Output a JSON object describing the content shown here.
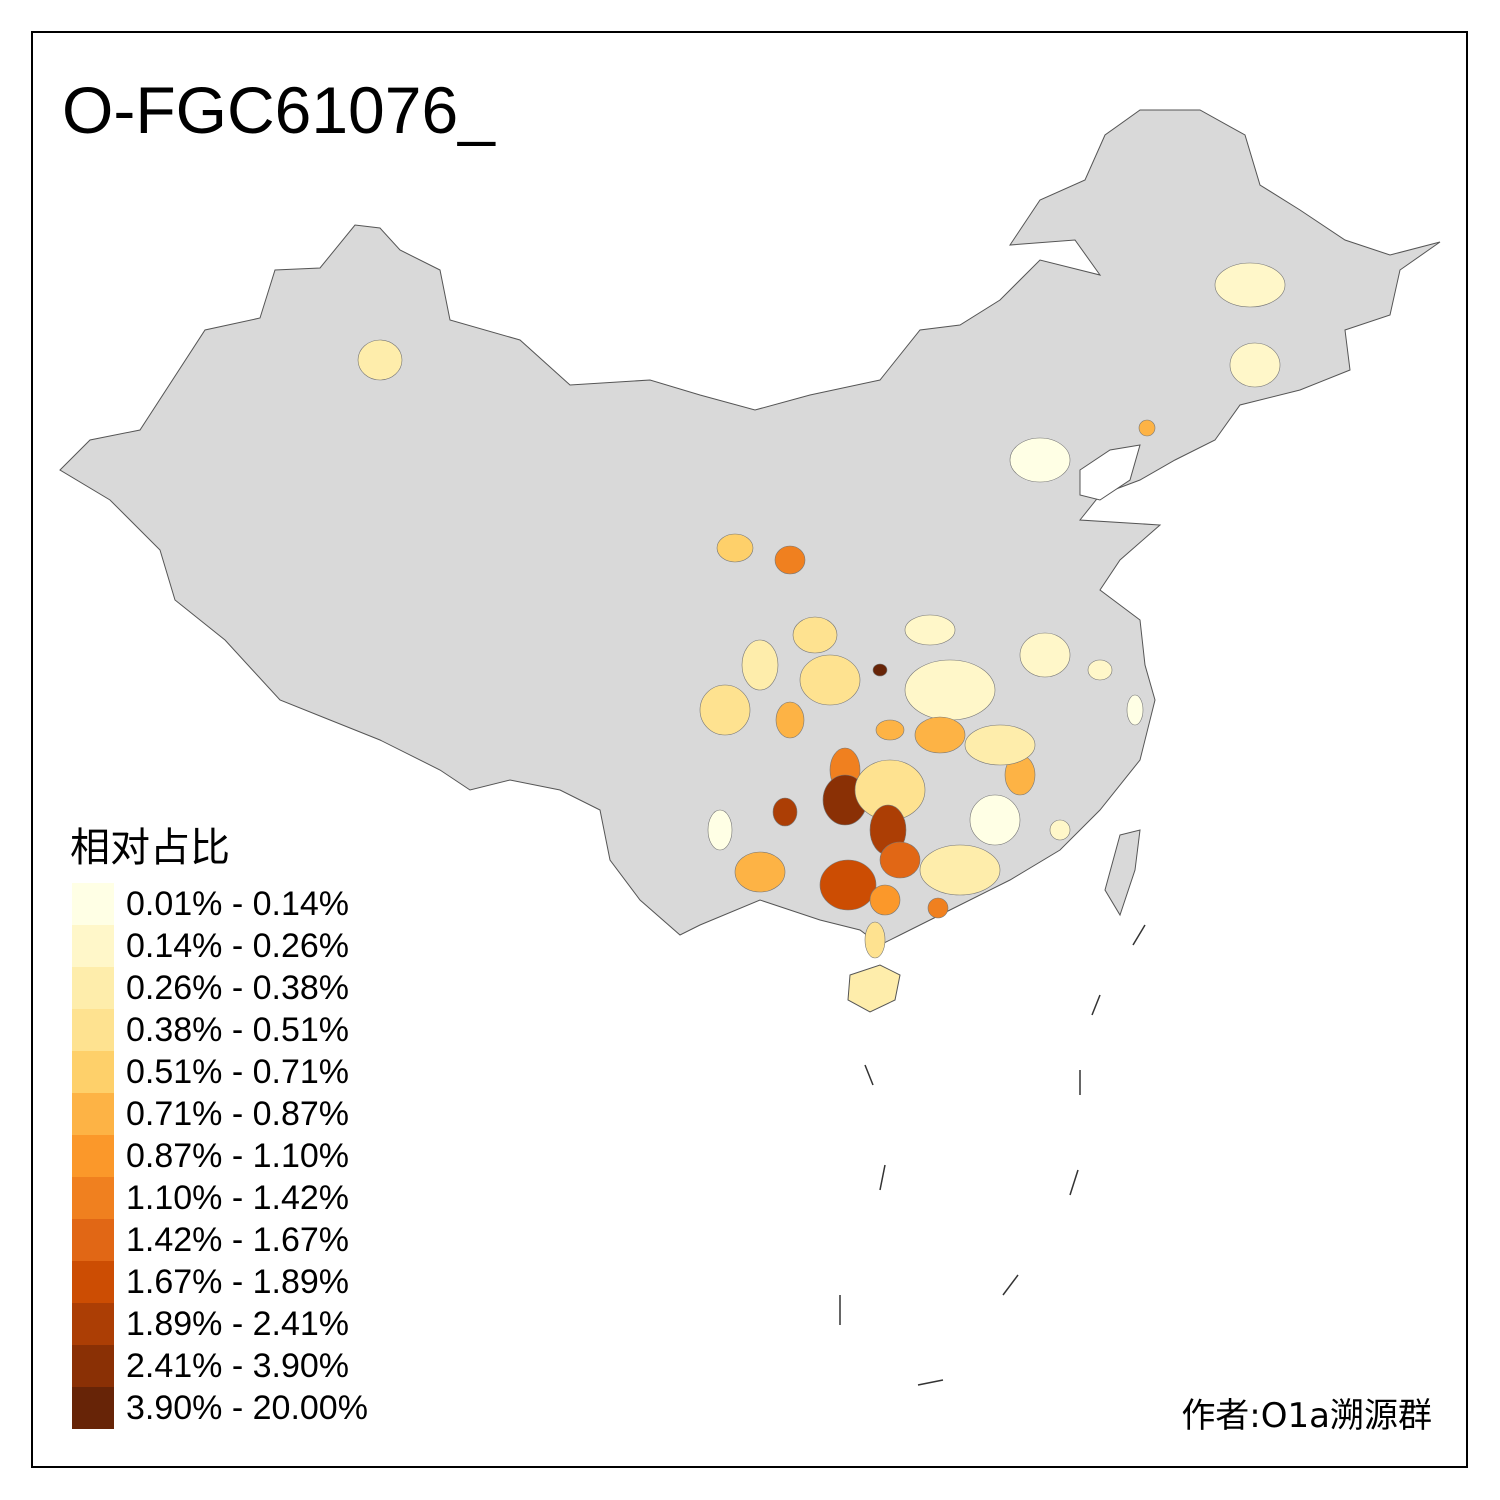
{
  "title": "O-FGC61076_",
  "legend": {
    "title": "相对占比",
    "items": [
      {
        "label": "0.01% - 0.14%",
        "color": "#FFFFE5"
      },
      {
        "label": "0.14% - 0.26%",
        "color": "#FFF7C9"
      },
      {
        "label": "0.26% - 0.38%",
        "color": "#FEEDAB"
      },
      {
        "label": "0.38% - 0.51%",
        "color": "#FEE290"
      },
      {
        "label": "0.51% - 0.71%",
        "color": "#FED06A"
      },
      {
        "label": "0.71% - 0.87%",
        "color": "#FDB345"
      },
      {
        "label": "0.87% - 1.10%",
        "color": "#FB982A"
      },
      {
        "label": "1.10% - 1.42%",
        "color": "#F0801F"
      },
      {
        "label": "1.42% - 1.67%",
        "color": "#E16715"
      },
      {
        "label": "1.67% - 1.89%",
        "color": "#CC4D03"
      },
      {
        "label": "1.89% - 2.41%",
        "color": "#AC3E05"
      },
      {
        "label": "2.41% - 3.90%",
        "color": "#8A3005"
      },
      {
        "label": "3.90% - 20.00%",
        "color": "#672407"
      }
    ]
  },
  "author": "作者:O1a溯源群",
  "colors": {
    "base_region": "#D9D9D9",
    "border": "#555555"
  }
}
